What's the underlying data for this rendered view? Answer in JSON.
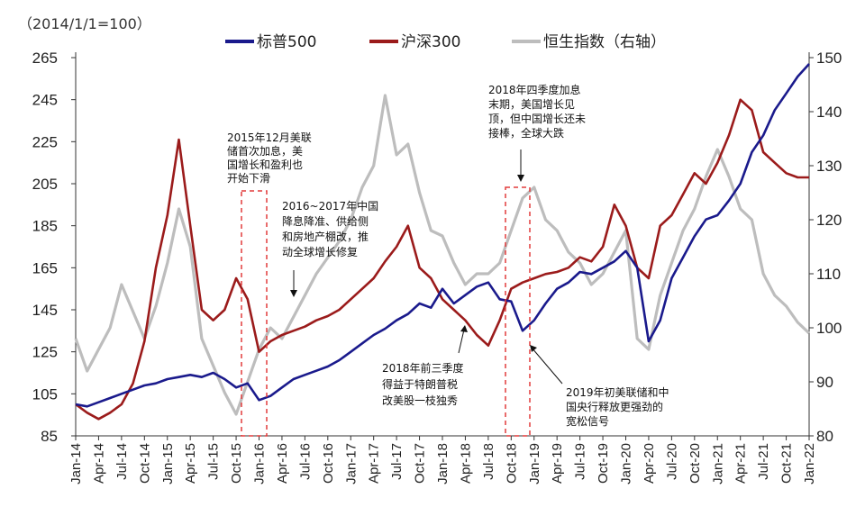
{
  "chart_data": {
    "type": "line",
    "unit_label": "（2014/1/1=100）",
    "legend": [
      {
        "name": "标普500",
        "color": "#1a1a8c"
      },
      {
        "name": "沪深300",
        "color": "#9b1b1b"
      },
      {
        "name": "恒生指数（右轴）",
        "color": "#bdbdbd"
      }
    ],
    "y_left": {
      "min": 85,
      "max": 265,
      "ticks": [
        "265",
        "245",
        "225",
        "205",
        "185",
        "165",
        "145",
        "125",
        "105",
        "85"
      ]
    },
    "y_right": {
      "min": 80,
      "max": 150,
      "ticks": [
        "150",
        "140",
        "130",
        "120",
        "110",
        "100",
        "90",
        "80"
      ]
    },
    "x_ticks": [
      "Jan-14",
      "Apr-14",
      "Jul-14",
      "Oct-14",
      "Jan-15",
      "Apr-15",
      "Jul-15",
      "Oct-15",
      "Jan-16",
      "Apr-16",
      "Jul-16",
      "Oct-16",
      "Jan-17",
      "Apr-17",
      "Jul-17",
      "Oct-17",
      "Jan-18",
      "Apr-18",
      "Jul-18",
      "Oct-18",
      "Jan-19",
      "Apr-19",
      "Jul-19",
      "Oct-19",
      "Jan-20",
      "Apr-20",
      "Jul-20",
      "Oct-20",
      "Jan-21",
      "Apr-21",
      "Jul-21",
      "Oct-21",
      "Jan-22"
    ],
    "series": [
      {
        "name": "标普500",
        "color": "#1a1a8c",
        "axis": "left",
        "x": [
          0,
          0.5,
          1,
          1.5,
          2,
          2.5,
          3,
          3.5,
          4,
          4.5,
          5,
          5.5,
          6,
          6.5,
          7,
          7.5,
          8,
          8.5,
          9,
          9.5,
          10,
          10.5,
          11,
          11.5,
          12,
          12.5,
          13,
          13.5,
          14,
          14.5,
          15,
          15.5,
          16,
          16.5,
          17,
          17.5,
          18,
          18.5,
          19,
          19.5,
          20,
          20.5,
          21,
          21.5,
          22,
          22.5,
          23,
          23.5,
          24,
          24.5,
          25,
          25.5,
          26,
          26.5,
          27,
          27.5,
          28,
          28.5,
          29,
          29.5,
          30,
          30.5,
          31,
          31.5,
          32
        ],
        "y": [
          100,
          99,
          101,
          103,
          105,
          107,
          109,
          110,
          112,
          113,
          114,
          113,
          115,
          112,
          108,
          110,
          102,
          104,
          108,
          112,
          114,
          116,
          118,
          121,
          125,
          129,
          133,
          136,
          140,
          143,
          148,
          146,
          155,
          148,
          152,
          156,
          158,
          150,
          149,
          135,
          140,
          148,
          155,
          158,
          163,
          162,
          165,
          168,
          173,
          165,
          130,
          140,
          160,
          170,
          180,
          188,
          190,
          197,
          205,
          220,
          228,
          240,
          248,
          256,
          262
        ]
      },
      {
        "name": "沪深300",
        "color": "#9b1b1b",
        "axis": "left",
        "x": [
          0,
          0.5,
          1,
          1.5,
          2,
          2.5,
          3,
          3.5,
          4,
          4.5,
          5,
          5.5,
          6,
          6.5,
          7,
          7.5,
          8,
          8.5,
          9,
          9.5,
          10,
          10.5,
          11,
          11.5,
          12,
          12.5,
          13,
          13.5,
          14,
          14.5,
          15,
          15.5,
          16,
          16.5,
          17,
          17.5,
          18,
          18.5,
          19,
          19.5,
          20,
          20.5,
          21,
          21.5,
          22,
          22.5,
          23,
          23.5,
          24,
          24.5,
          25,
          25.5,
          26,
          26.5,
          27,
          27.5,
          28,
          28.5,
          29,
          29.5,
          30,
          30.5,
          31,
          31.5,
          32
        ],
        "y": [
          100,
          96,
          93,
          96,
          100,
          110,
          130,
          165,
          190,
          226,
          185,
          145,
          140,
          145,
          160,
          150,
          125,
          130,
          133,
          135,
          137,
          140,
          142,
          145,
          150,
          155,
          160,
          168,
          175,
          185,
          165,
          160,
          150,
          145,
          140,
          133,
          128,
          140,
          155,
          158,
          160,
          162,
          163,
          165,
          170,
          168,
          175,
          195,
          185,
          165,
          160,
          185,
          190,
          200,
          210,
          205,
          215,
          228,
          245,
          240,
          220,
          215,
          210,
          208,
          208
        ]
      },
      {
        "name": "恒生指数（右轴）",
        "color": "#bdbdbd",
        "axis": "right",
        "x": [
          0,
          0.5,
          1,
          1.5,
          2,
          2.5,
          3,
          3.5,
          4,
          4.5,
          5,
          5.5,
          6,
          6.5,
          7,
          7.5,
          8,
          8.5,
          9,
          9.5,
          10,
          10.5,
          11,
          11.5,
          12,
          12.5,
          13,
          13.5,
          14,
          14.5,
          15,
          15.5,
          16,
          16.5,
          17,
          17.5,
          18,
          18.5,
          19,
          19.5,
          20,
          20.5,
          21,
          21.5,
          22,
          22.5,
          23,
          23.5,
          24,
          24.5,
          25,
          25.5,
          26,
          26.5,
          27,
          27.5,
          28,
          28.5,
          29,
          29.5,
          30,
          30.5,
          31,
          31.5,
          32
        ],
        "y": [
          98,
          92,
          96,
          100,
          108,
          103,
          98,
          104,
          112,
          122,
          115,
          98,
          93,
          88,
          84,
          90,
          96,
          100,
          98,
          102,
          106,
          110,
          113,
          116,
          120,
          126,
          130,
          143,
          132,
          134,
          125,
          118,
          117,
          112,
          108,
          110,
          110,
          112,
          118,
          124,
          126,
          120,
          118,
          114,
          112,
          108,
          110,
          114,
          118,
          98,
          96,
          106,
          112,
          118,
          122,
          128,
          133,
          128,
          122,
          120,
          110,
          106,
          104,
          101,
          99
        ]
      }
    ],
    "annotations": [
      {
        "lines": [
          "2015年12月美联",
          "储首次加息，美",
          "国增长和盈利也",
          "开始下滑"
        ]
      },
      {
        "lines": [
          "2016~2017年中国",
          "降息降准、供给侧",
          "和房地产棚改，推",
          "动全球增长修复"
        ]
      },
      {
        "lines": [
          "2018年前三季度",
          "得益于特朗普税",
          "改美股一枝独秀"
        ]
      },
      {
        "lines": [
          "2018年四季度加息",
          "末期，美国增长见",
          "顶，但中国增长还未",
          "接棒，全球大跌"
        ]
      },
      {
        "lines": [
          "2019年初美联储和中",
          "国央行释放更强劲的",
          "宽松信号"
        ]
      }
    ]
  }
}
